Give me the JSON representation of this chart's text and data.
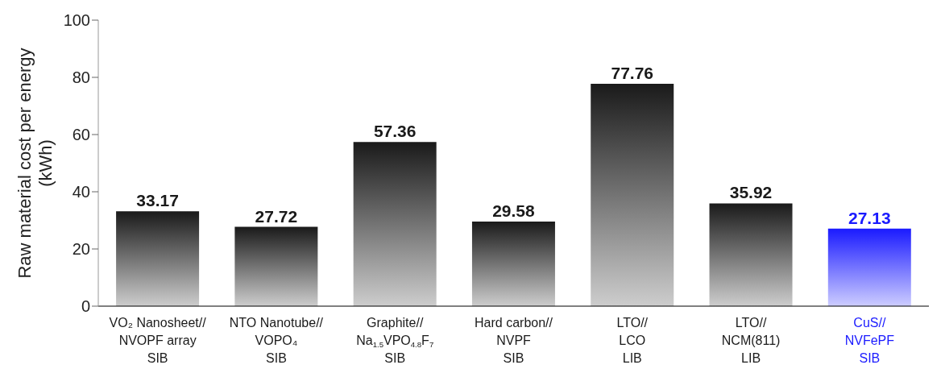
{
  "chart_data": {
    "type": "bar",
    "ylabel": "Raw material cost per energy\n(kWh)",
    "categories": [
      "VO₂ Nanosheet//\nNVOPF array\nSIB",
      "NTO Nanotube//\nVOPO₄\nSIB",
      "Graphite//\nNa$_{1.5}$VPO$_{4.8}$F$_{7}$\nSIB",
      "Hard carbon//\nNVPF\nSIB",
      "LTO//\nLCO\nLIB",
      "LTO//\nNCM(811)\nLIB",
      "CuS//\nNVFePF\nSIB"
    ],
    "values": [
      33.17,
      27.72,
      57.36,
      29.58,
      77.76,
      35.92,
      27.13
    ],
    "colors": [
      "#1a1a1a",
      "#1a1a1a",
      "#1a1a1a",
      "#1a1a1a",
      "#1a1a1a",
      "#1a1a1a",
      "#1a1aff"
    ],
    "ylim": [
      0,
      100
    ],
    "yticks": [
      0,
      20,
      40,
      60,
      80,
      100
    ],
    "data_labels": true,
    "grid": false,
    "legend": false
  }
}
